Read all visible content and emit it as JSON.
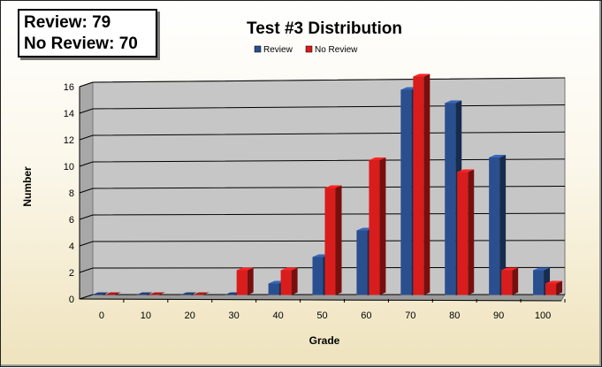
{
  "means_box": {
    "review_line": "Review: 79",
    "no_review_line": "No Review: 70"
  },
  "chart_data": {
    "type": "bar",
    "title": "Test #3 Distribution",
    "xlabel": "Grade",
    "ylabel": "Number",
    "categories": [
      "0",
      "10",
      "20",
      "30",
      "40",
      "50",
      "60",
      "70",
      "80",
      "90",
      "100"
    ],
    "ylim": [
      0,
      16
    ],
    "yticks": [
      0,
      2,
      4,
      6,
      8,
      10,
      12,
      14,
      16
    ],
    "grid": true,
    "three_d": true,
    "legend_position": "top-center",
    "series": [
      {
        "name": "Review",
        "color": "#2a4f8f",
        "values": [
          0,
          0,
          0,
          0,
          1,
          3,
          5,
          15.6,
          14.6,
          10.5,
          2
        ]
      },
      {
        "name": "No Review",
        "color": "#d91c1c",
        "values": [
          0,
          0,
          0,
          2,
          2,
          8.2,
          10.3,
          16.6,
          9.4,
          2,
          1
        ]
      }
    ]
  }
}
